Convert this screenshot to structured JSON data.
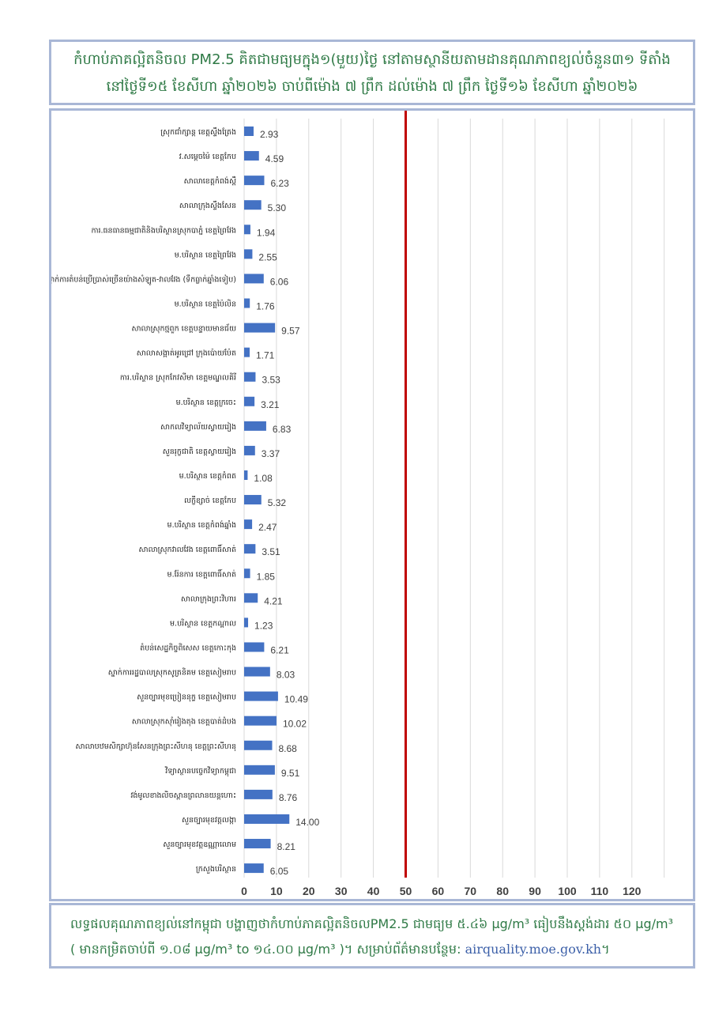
{
  "title": {
    "line1": "កំហាប់ភាគល្អិតនិចល PM2.5 គិតជាមធ្យមក្នុង១(មួយ)ថ្ងៃ នៅតាមស្ថានីយតាមដានគុណភាពខ្យល់ចំនួន៣១ ទីតាំង",
    "line2": "នៅថ្ងៃទី១៥ ខែសីហា ឆ្នាំ២០២៦ ចាប់ពីម៉ោង ៧ ព្រឹក ដល់ម៉ោង ៧ ព្រឹក ថ្ងៃទី១៦ ខែសីហា ឆ្នាំ២០២៦"
  },
  "chart_data": {
    "type": "bar",
    "orientation": "horizontal",
    "categories": [
      "ស្រុកជាំក្សាន្ត ខេត្តស្ទឹងត្រែង",
      "វ.សម្តេចម៉ៃ ខេត្តកែប",
      "សាលាខេត្តកំពង់ស្ពឺ",
      "សាលាក្រុងស្ទឹងសែន",
      "ការ.ធនធានធម្មជាតិនិងបរិស្ថានស្រុកបាភ្នំ ខេត្តព្រៃវែង",
      "ម.បរិស្ថាន ខេត្តព្រៃវែង",
      "ស្នាក់ការតំបន់ប្រើប្រាស់ច្រើនយ៉ាងសំឡូត-វាលវែង (ទឹកធ្លាក់ឆ្នាំងទៀប)",
      "ម.បរិស្ថាន ខេត្តប៉ៃលិន",
      "សាលាស្រុកថ្មពួក ខេត្តបន្ទាយមានជ័យ",
      "សាលាសង្កាត់អូរជ្រៅ ក្រុងប៉ោយប៉ែត",
      "ការ.បរិស្ថាន ស្រុកកែវសីមា ខេត្តមណ្ឌលគិរី",
      "ម.បរិស្ថាន ខេត្តក្រចេះ",
      "សាកលវិទ្យាល័យស្វាយរៀង",
      "សួនរុក្ខជាតិ ខេត្តស្វាយរៀង",
      "ម.បរិស្ថាន ខេត្តកំពត",
      "លក្ខីខ្សាច់ ខេត្តកែប",
      "ម.បរិស្ថាន ខេត្តកំពង់ឆ្នាំង",
      "សាលាស្រុកវាលវែង ខេត្តពោធិ៍សាត់",
      "ម.រ៉ែនការ ខេត្តពោធិ៍សាត់",
      "សាលាក្រុងព្រះវិហារ",
      "ម.បរិស្ថាន ខេត្តកណ្ដាល",
      "តំបន់សេដ្ឋកិច្ចពិសេស ខេត្តកោះកុង",
      "ស្នាក់ការរដ្ឋបាលស្រុកសូត្រនិគម ខេត្តសៀមរាប",
      "សួនច្បារមុខប្រៀននុក្ខ ខេត្តសៀមរាប",
      "សាលាស្រុកស៊ាំរៀងតុង ខេត្តបាត់ដំបង",
      "សាលាបឋមសិក្សាហ៊ុនសែនក្រុងព្រះសីហនុ ខេត្តព្រះសីហនុ",
      "វិទ្យាស្ថានបច្ចេកវិទ្យាកម្ពុជា",
      "វង់មូលខាងលិចស្ពានព្រលានយន្តហោះ",
      "សួនច្បារមុខវត្តលង្កា",
      "សួនច្បារមុខវត្តឧណ្ណាលោម",
      "ក្រសួងបរិស្ថាន"
    ],
    "values": [
      2.93,
      4.59,
      6.23,
      5.3,
      1.94,
      2.55,
      6.06,
      1.76,
      9.57,
      1.71,
      3.53,
      3.21,
      6.83,
      3.37,
      1.08,
      5.32,
      2.47,
      3.51,
      1.85,
      4.21,
      1.23,
      6.21,
      8.03,
      10.49,
      10.02,
      8.68,
      9.51,
      8.76,
      14.0,
      8.21,
      6.05
    ],
    "value_labels": [
      "2.93",
      "4.59",
      "6.23",
      "5.30",
      "1.94",
      "2.55",
      "6.06",
      "1.76",
      "9.57",
      "1.71",
      "3.53",
      "3.21",
      "6.83",
      "3.37",
      "1.08",
      "5.32",
      "2.47",
      "3.51",
      "1.85",
      "4.21",
      "1.23",
      "6.21",
      "8.03",
      "10.49",
      "10.02",
      "8.68",
      "9.51",
      "8.76",
      "14.00",
      "8.21",
      "6.05"
    ],
    "xlim": [
      0,
      130
    ],
    "xticks": [
      0,
      10,
      20,
      30,
      40,
      50,
      60,
      70,
      80,
      90,
      100,
      110,
      120
    ],
    "grid": true,
    "reference_line": 50,
    "bar_color": "#4472c4",
    "reference_color": "#c00000",
    "grid_color": "#d9d9d9"
  },
  "footer": {
    "line1": "លទ្ធផលគុណភាពខ្យល់នៅកម្ពុជា បង្ហាញថាកំហាប់ភាគល្អិតនិចលPM2.5 ជាមធ្យម ៥.៤៦ µg/m³ ធៀបនឹងស្តង់ដារ ៥០ µg/m³",
    "line2": "( មានកម្រិតចាប់ពី ១.០៨ µg/m³ to ១៤.០០ µg/m³ )។ សម្រាប់ព័ត៌មានបន្ថែម: ",
    "url": "airquality.moe.gov.kh",
    "end": "។"
  }
}
